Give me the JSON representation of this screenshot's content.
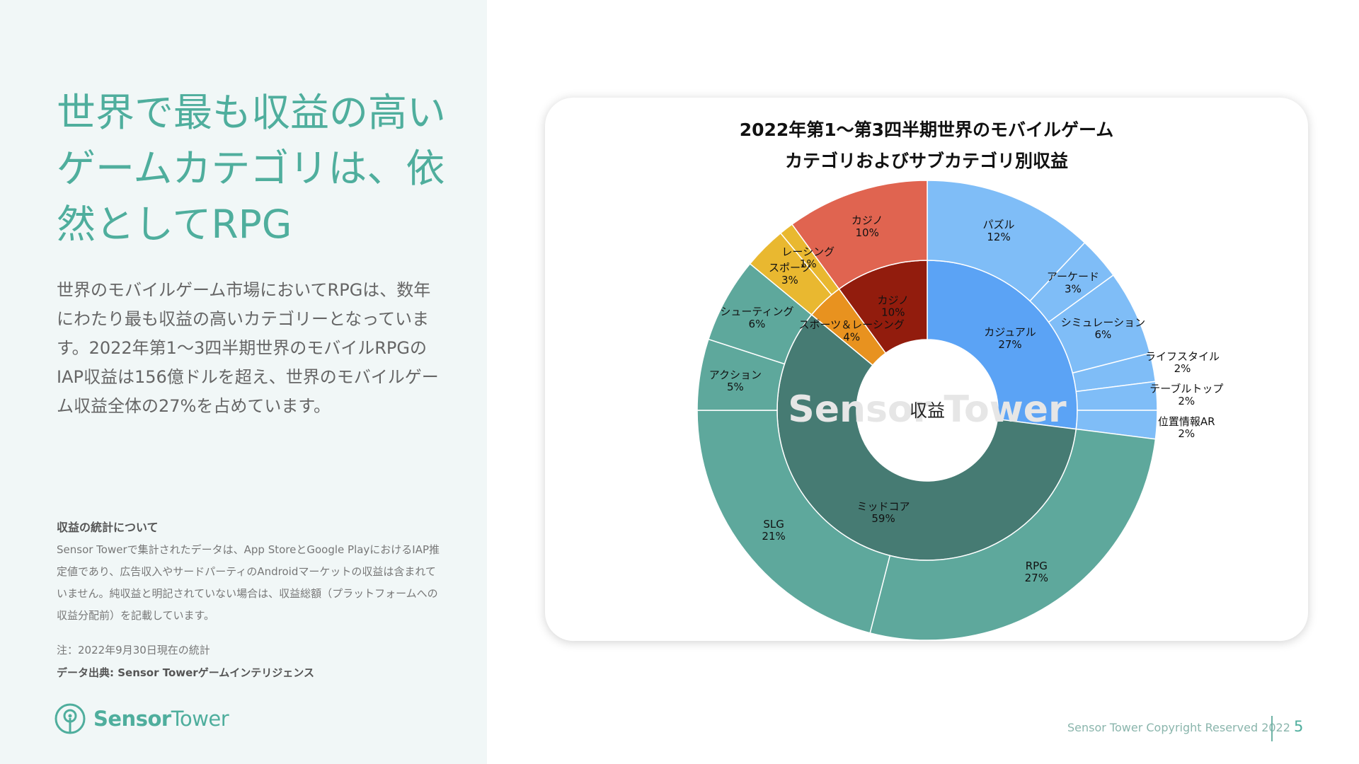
{
  "headline": "世界で最も収益の高いゲームカテゴリは、依然としてRPG",
  "lead": "世界のモバイルゲーム市場においてRPGは、数年にわたり最も収益の高いカテゴリーとなっています。2022年第1〜3四半期世界のモバイルRPGのIAP収益は156億ドルを超え、世界のモバイルゲーム収益全体の27%を占めています。",
  "notes": {
    "title": "収益の統計について",
    "body": "Sensor Towerで集計されたデータは、App StoreとGoogle PlayにおけるIAP推定値であり、広告収入やサードパーティのAndroidマーケットの収益は含まれていません。純収益と明記されていない場合は、収益総額（プラットフォームへの収益分配前）を記載しています。"
  },
  "footnote": "注：2022年9月30日現在の統計",
  "source": "データ出典: Sensor Towerゲームインテリジェンス",
  "logo": {
    "word1": "Sensor",
    "word2": "Tower",
    "icon": "sensor-tower-logo-icon"
  },
  "footer": {
    "copyright": "Sensor Tower Copyright Reserved 2022",
    "page": "5"
  },
  "chart_data": {
    "type": "sunburst",
    "title_line1": "2022年第1〜第3四半期世界のモバイルゲーム",
    "title_line2": "カテゴリおよびサブカテゴリ別収益",
    "center_label": "収益",
    "watermark": "Sensor Tower",
    "inner": [
      {
        "name": "カジュアル",
        "value": 27,
        "label": "27%",
        "color": "#5ba3f5"
      },
      {
        "name": "ミッドコア",
        "value": 59,
        "label": "59%",
        "color": "#467b73"
      },
      {
        "name": "スポーツ＆レーシング",
        "value": 4,
        "label": "4%",
        "color": "#e8921f"
      },
      {
        "name": "カジノ",
        "value": 10,
        "label": "10%",
        "color": "#921c0d"
      }
    ],
    "outer": [
      {
        "name": "パズル",
        "value": 12,
        "label": "12%",
        "parent": "カジュアル",
        "color": "#7fbdf7"
      },
      {
        "name": "アーケード",
        "value": 3,
        "label": "3%",
        "parent": "カジュアル",
        "color": "#7fbdf7"
      },
      {
        "name": "シミュレーション",
        "value": 6,
        "label": "6%",
        "parent": "カジュアル",
        "color": "#7fbdf7"
      },
      {
        "name": "ライフスタイル",
        "value": 2,
        "label": "2%",
        "parent": "カジュアル",
        "color": "#7fbdf7"
      },
      {
        "name": "テーブルトップ",
        "value": 2,
        "label": "2%",
        "parent": "カジュアル",
        "color": "#7fbdf7"
      },
      {
        "name": "位置情報AR",
        "value": 2,
        "label": "2%",
        "parent": "カジュアル",
        "color": "#7fbdf7"
      },
      {
        "name": "RPG",
        "value": 27,
        "label": "27%",
        "parent": "ミッドコア",
        "color": "#5ea89c"
      },
      {
        "name": "SLG",
        "value": 21,
        "label": "21%",
        "parent": "ミッドコア",
        "color": "#5ea89c"
      },
      {
        "name": "アクション",
        "value": 5,
        "label": "5%",
        "parent": "ミッドコア",
        "color": "#5ea89c"
      },
      {
        "name": "シューティング",
        "value": 6,
        "label": "6%",
        "parent": "ミッドコア",
        "color": "#5ea89c"
      },
      {
        "name": "スポーツ",
        "value": 3,
        "label": "3%",
        "parent": "スポーツ＆レーシング",
        "color": "#e9b830"
      },
      {
        "name": "レーシング",
        "value": 1,
        "label": "1%",
        "parent": "スポーツ＆レーシング",
        "color": "#e9b830"
      },
      {
        "name": "カジノ",
        "value": 10,
        "label": "10%",
        "parent": "カジノ",
        "color": "#e06450"
      }
    ]
  }
}
